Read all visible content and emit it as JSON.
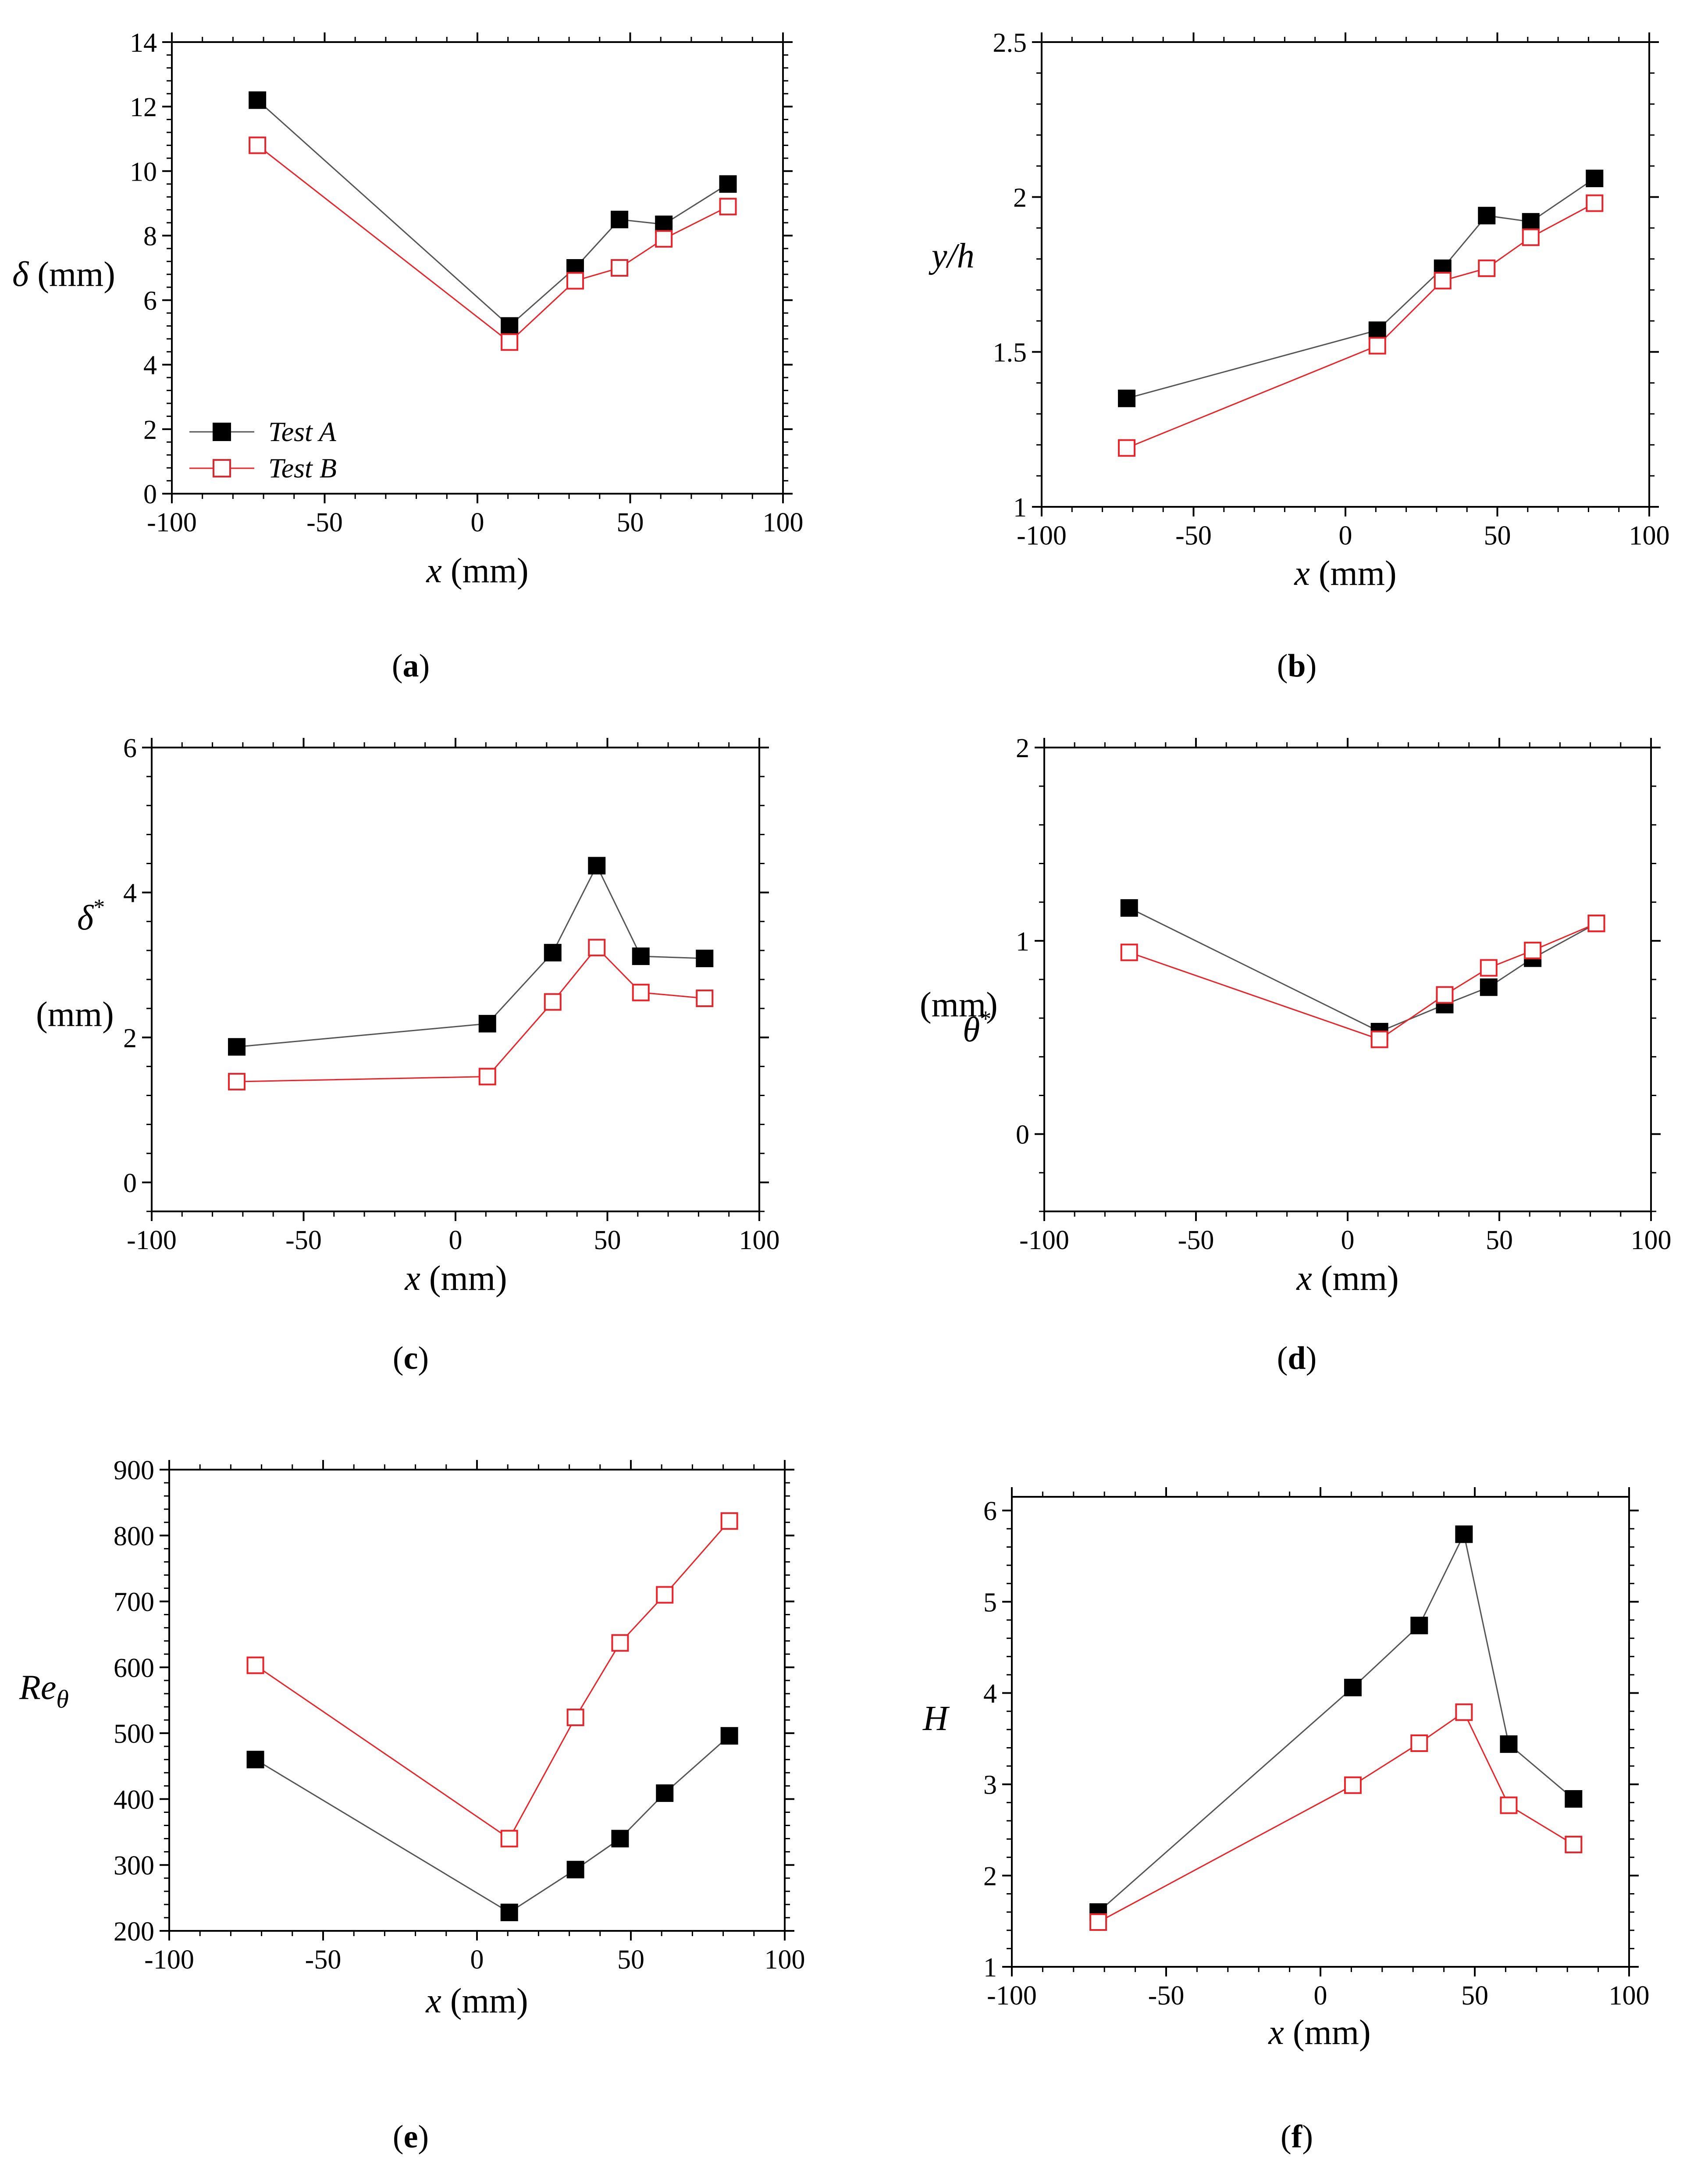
{
  "figure": {
    "series_names": [
      "Test A",
      "Test B"
    ],
    "colors": {
      "test_a": "#000000",
      "test_b": "#e8242a",
      "test_a_line": "#555555"
    }
  },
  "chart_data": [
    {
      "id": "a",
      "type": "line",
      "panel_label": "a",
      "xlabel": "x (mm)",
      "ylabel": "δ (mm)",
      "xlim": [
        -100,
        100
      ],
      "ylim": [
        0,
        14
      ],
      "xticks": [
        -100,
        -50,
        0,
        50,
        100
      ],
      "yticks": [
        0,
        2,
        4,
        6,
        8,
        10,
        12,
        14
      ],
      "ytick_labels": [
        "0",
        "2",
        "4",
        "6",
        "8",
        "10",
        "12",
        "14"
      ],
      "legend": {
        "position": "bottom-left",
        "entries": [
          "Test A",
          "Test B"
        ]
      },
      "series": [
        {
          "name": "Test A",
          "x": [
            -72,
            10.5,
            32,
            46.5,
            61,
            82
          ],
          "y": [
            12.2,
            5.2,
            7.0,
            8.5,
            8.35,
            9.6
          ]
        },
        {
          "name": "Test B",
          "x": [
            -72,
            10.5,
            32,
            46.5,
            61,
            82
          ],
          "y": [
            10.8,
            4.7,
            6.6,
            7.0,
            7.9,
            8.9
          ]
        }
      ]
    },
    {
      "id": "b",
      "type": "line",
      "panel_label": "b",
      "xlabel": "x (mm)",
      "ylabel": "y/h",
      "xlim": [
        -100,
        100
      ],
      "ylim": [
        1,
        2.5
      ],
      "xticks": [
        -100,
        -50,
        0,
        50,
        100
      ],
      "yticks": [
        1,
        1.5,
        2,
        2.5
      ],
      "ytick_labels": [
        "1",
        "1.5",
        "2",
        "2.5"
      ],
      "series": [
        {
          "name": "Test A",
          "x": [
            -72,
            10.5,
            32,
            46.5,
            61,
            82
          ],
          "y": [
            1.35,
            1.57,
            1.77,
            1.94,
            1.92,
            2.06
          ]
        },
        {
          "name": "Test B",
          "x": [
            -72,
            10.5,
            32,
            46.5,
            61,
            82
          ],
          "y": [
            1.19,
            1.52,
            1.73,
            1.77,
            1.87,
            1.98
          ]
        }
      ]
    },
    {
      "id": "c",
      "type": "line",
      "panel_label": "c",
      "xlabel": "x (mm)",
      "ylabel": "δ* (mm)",
      "xlim": [
        -100,
        100
      ],
      "ylim": [
        -0.4,
        6
      ],
      "xticks": [
        -100,
        -50,
        0,
        50,
        100
      ],
      "yticks": [
        0,
        2,
        4,
        6
      ],
      "ytick_labels": [
        "0",
        "2",
        "4",
        "6"
      ],
      "series": [
        {
          "name": "Test A",
          "x": [
            -72,
            10.5,
            32,
            46.5,
            61,
            82
          ],
          "y": [
            1.87,
            2.19,
            3.17,
            4.37,
            3.12,
            3.09
          ]
        },
        {
          "name": "Test B",
          "x": [
            -72,
            10.5,
            32,
            46.5,
            61,
            82
          ],
          "y": [
            1.39,
            1.46,
            2.49,
            3.24,
            2.62,
            2.54
          ]
        }
      ]
    },
    {
      "id": "d",
      "type": "line",
      "panel_label": "d",
      "xlabel": "x (mm)",
      "ylabel": "θ* (mm)",
      "xlim": [
        -100,
        100
      ],
      "ylim": [
        -0.4,
        2
      ],
      "xticks": [
        -100,
        -50,
        0,
        50,
        100
      ],
      "yticks": [
        0,
        1,
        2
      ],
      "ytick_labels": [
        "0",
        "1",
        "2"
      ],
      "series": [
        {
          "name": "Test A",
          "x": [
            -72,
            10.5,
            32,
            46.5,
            61,
            82
          ],
          "y": [
            1.17,
            0.53,
            0.67,
            0.76,
            0.91,
            1.09
          ]
        },
        {
          "name": "Test B",
          "x": [
            -72,
            10.5,
            32,
            46.5,
            61,
            82
          ],
          "y": [
            0.94,
            0.49,
            0.72,
            0.86,
            0.95,
            1.09
          ]
        }
      ]
    },
    {
      "id": "e",
      "type": "line",
      "panel_label": "e",
      "xlabel": "x (mm)",
      "ylabel": "Reθ",
      "xlim": [
        -100,
        100
      ],
      "ylim": [
        200,
        900
      ],
      "xticks": [
        -100,
        -50,
        0,
        50,
        100
      ],
      "yticks": [
        200,
        300,
        400,
        500,
        600,
        700,
        800,
        900
      ],
      "ytick_labels": [
        "200",
        "300",
        "400",
        "500",
        "600",
        "700",
        "800",
        "900"
      ],
      "series": [
        {
          "name": "Test A",
          "x": [
            -72,
            10.5,
            32,
            46.5,
            61,
            82
          ],
          "y": [
            460,
            228,
            293,
            340,
            409,
            496
          ]
        },
        {
          "name": "Test B",
          "x": [
            -72,
            10.5,
            32,
            46.5,
            61,
            82
          ],
          "y": [
            603,
            340,
            524,
            637,
            710,
            822
          ]
        }
      ]
    },
    {
      "id": "f",
      "type": "line",
      "panel_label": "f",
      "xlabel": "x (mm)",
      "ylabel": "H",
      "xlim": [
        -100,
        100
      ],
      "ylim": [
        1,
        6.15
      ],
      "xticks": [
        -100,
        -50,
        0,
        50,
        100
      ],
      "yticks": [
        1,
        2,
        3,
        4,
        5,
        6
      ],
      "ytick_labels": [
        "1",
        "2",
        "3",
        "4",
        "5",
        "6"
      ],
      "series": [
        {
          "name": "Test A",
          "x": [
            -72,
            10.5,
            32,
            46.5,
            61,
            82
          ],
          "y": [
            1.6,
            4.06,
            4.74,
            5.74,
            3.44,
            2.84
          ]
        },
        {
          "name": "Test B",
          "x": [
            -72,
            10.5,
            32,
            46.5,
            61,
            82
          ],
          "y": [
            1.49,
            2.99,
            3.45,
            3.79,
            2.77,
            2.34
          ]
        }
      ]
    }
  ]
}
